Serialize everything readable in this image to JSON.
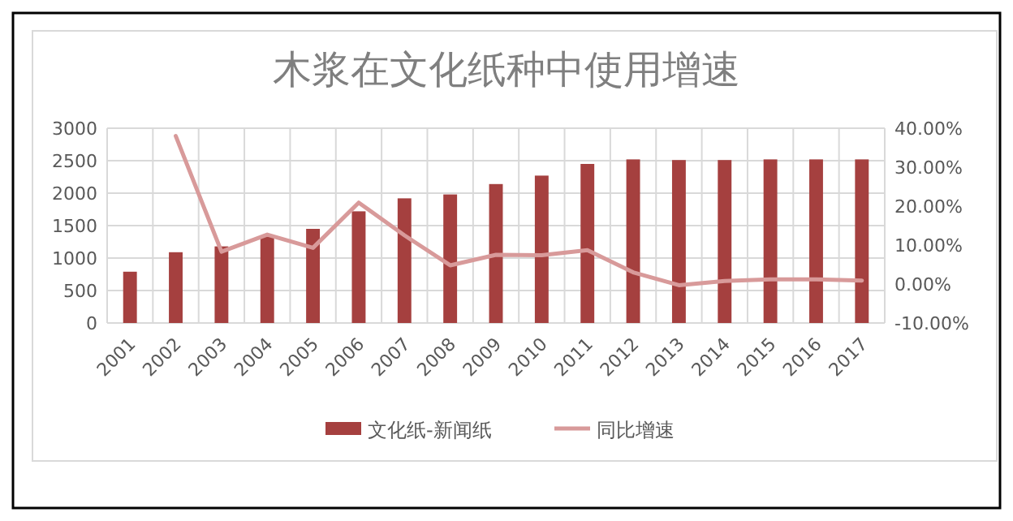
{
  "chart_data": {
    "type": "bar",
    "title": "木浆在文化纸种中使用增速",
    "categories": [
      "2001",
      "2002",
      "2003",
      "2004",
      "2005",
      "2006",
      "2007",
      "2008",
      "2009",
      "2010",
      "2011",
      "2012",
      "2013",
      "2014",
      "2015",
      "2016",
      "2017"
    ],
    "series": [
      {
        "name": "文化纸-新闻纸",
        "color": "#a5403f",
        "values": [
          790,
          1090,
          1180,
          1340,
          1450,
          1720,
          1920,
          1980,
          2140,
          2270,
          2450,
          2520,
          2510,
          2510,
          2520,
          2520,
          2520
        ]
      },
      {
        "name": "同比增速",
        "type": "line",
        "axis": "y2",
        "color": "#d89a9a",
        "values": [
          null,
          38,
          8.3,
          12.7,
          9.3,
          20.9,
          12.5,
          4.8,
          7.5,
          7.4,
          8.7,
          3,
          -0.3,
          0.8,
          1.2,
          1.2,
          0.9
        ]
      }
    ],
    "ylim": [
      0,
      3000
    ],
    "yticks": [
      0,
      500,
      1000,
      1500,
      2000,
      2500,
      3000
    ],
    "y2lim": [
      -10,
      40
    ],
    "y2ticks": [
      {
        "value": -10,
        "label": "-10.00%"
      },
      {
        "value": 0,
        "label": "0.00%"
      },
      {
        "value": 10,
        "label": "10.00%"
      },
      {
        "value": 20,
        "label": "20.00%"
      },
      {
        "value": 30,
        "label": "30.00%"
      },
      {
        "value": 40,
        "label": "40.00%"
      }
    ],
    "grid": true,
    "legend": "bottom"
  }
}
